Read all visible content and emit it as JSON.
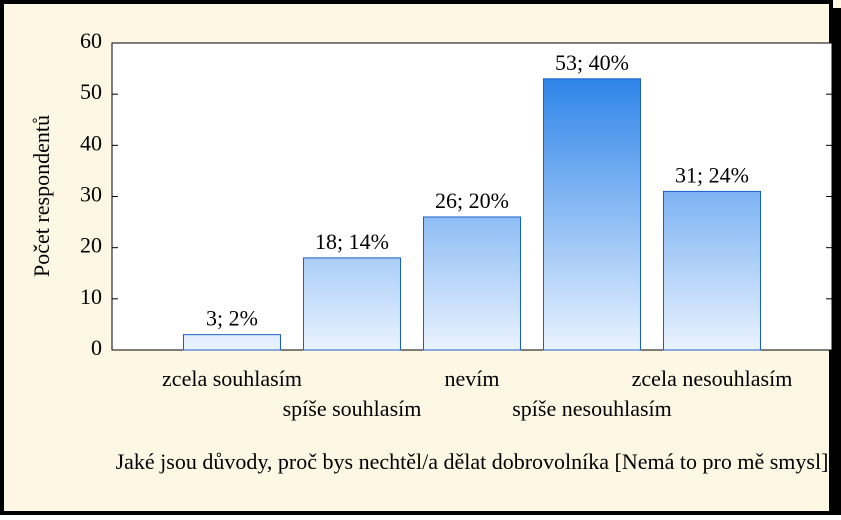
{
  "chart_data": {
    "type": "bar",
    "categories": [
      "zcela souhlasím",
      "spíše souhlasím",
      "nevím",
      "spíše nesouhlasím",
      "zcela nesouhlasím"
    ],
    "values": [
      3,
      18,
      26,
      53,
      31
    ],
    "value_labels": [
      "3; 2%",
      "18; 14%",
      "26; 20%",
      "53; 40%",
      "31; 24%"
    ],
    "color_top": "#1676e6",
    "color_bottom": "#eaf3ff",
    "ylabel": "Počet respondentů",
    "xlabel": "Jaké jsou důvody, proč bys nechtěl/a dělat dobrovolníka [Nemá to pro mě smysl]",
    "ylim": [
      0,
      60
    ],
    "yticks": [
      0,
      10,
      20,
      30,
      40,
      50,
      60
    ]
  }
}
